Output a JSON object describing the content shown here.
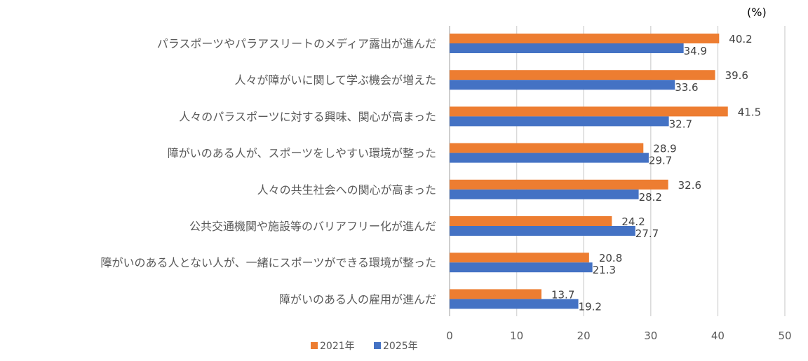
{
  "chart_data": {
    "type": "bar",
    "orientation": "horizontal",
    "unit_label": "(%)",
    "categories": [
      "パラスポーツやパラアスリートのメディア露出が進んだ",
      "人々が障がいに関して学ぶ機会が増えた",
      "人々のパラスポーツに対する興味、関心が高まった",
      "障がいのある人が、スポーツをしやすい環境が整った",
      "人々の共生社会への関心が高まった",
      "公共交通機関や施設等のバリアフリー化が進んだ",
      "障がいのある人とない人が、一緒にスポーツができる環境が整った",
      "障がいのある人の雇用が進んだ"
    ],
    "series": [
      {
        "name": "2021年",
        "color": "#ED7D31",
        "values": [
          40.2,
          39.6,
          41.5,
          28.9,
          32.6,
          24.2,
          20.8,
          13.7
        ]
      },
      {
        "name": "2025年",
        "color": "#4472C4",
        "values": [
          34.9,
          33.6,
          32.7,
          29.7,
          28.2,
          27.7,
          21.3,
          19.2
        ]
      }
    ],
    "xlim": [
      0,
      50
    ],
    "xticks": [
      "0",
      "10",
      "20",
      "30",
      "40",
      "50"
    ],
    "grid": true,
    "legend_position": "bottom"
  }
}
